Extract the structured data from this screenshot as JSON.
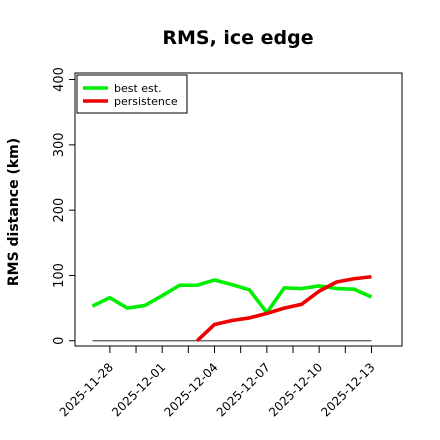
{
  "chart_data": {
    "type": "line",
    "title": "RMS, ice edge",
    "xlabel": "",
    "ylabel": "RMS distance (km)",
    "x_tick_labels": [
      "2025-11-28",
      "2025-12-01",
      "2025-12-04",
      "2025-12-07",
      "2025-12-10",
      "2025-12-13"
    ],
    "y_ticks": [
      0,
      100,
      200,
      300,
      400
    ],
    "ylim": [
      -8,
      410
    ],
    "xlim": [
      "2025-11-26T00:00",
      "2025-12-14T18:00"
    ],
    "grid": false,
    "legend": "top-left",
    "series": [
      {
        "name": "best est.",
        "color": "#00ee00",
        "points": [
          [
            "2025-11-27",
            53
          ],
          [
            "2025-11-28",
            66
          ],
          [
            "2025-11-29",
            50
          ],
          [
            "2025-11-30",
            54
          ],
          [
            "2025-12-01",
            69
          ],
          [
            "2025-12-02",
            85
          ],
          [
            "2025-12-03",
            85
          ],
          [
            "2025-12-04",
            93
          ],
          [
            "2025-12-05",
            86
          ],
          [
            "2025-12-06",
            78
          ],
          [
            "2025-12-07",
            43
          ],
          [
            "2025-12-08",
            81
          ],
          [
            "2025-12-09",
            80
          ],
          [
            "2025-12-10",
            84
          ],
          [
            "2025-12-11",
            80
          ],
          [
            "2025-12-12",
            79
          ],
          [
            "2025-12-13",
            67
          ]
        ]
      },
      {
        "name": "persistence",
        "color": "#ee0000",
        "points": [
          [
            "2025-12-03",
            0
          ],
          [
            "2025-12-04",
            25
          ],
          [
            "2025-12-05",
            31
          ],
          [
            "2025-12-06",
            35
          ],
          [
            "2025-12-07",
            42
          ],
          [
            "2025-12-08",
            50
          ],
          [
            "2025-12-09",
            56
          ],
          [
            "2025-12-10",
            76
          ],
          [
            "2025-12-11",
            90
          ],
          [
            "2025-12-12",
            95
          ],
          [
            "2025-12-13",
            98
          ]
        ]
      },
      {
        "name": "",
        "color": "#555555",
        "points": [
          [
            "2025-11-27",
            0
          ],
          [
            "2025-12-13",
            0
          ]
        ]
      }
    ]
  }
}
